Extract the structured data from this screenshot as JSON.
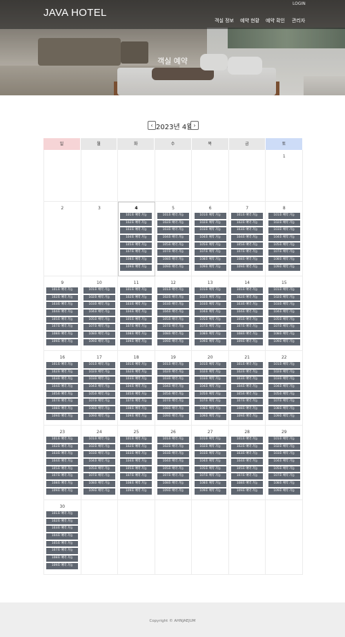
{
  "header": {
    "logo": "JAVA HOTEL",
    "login": "LOGIN",
    "nav": [
      "객실 정보",
      "예약 현황",
      "예약 확인",
      "관리자"
    ],
    "hero_title": "객실 예약"
  },
  "calendar": {
    "prev_icon": "chevron-left-icon",
    "next_icon": "chevron-right-icon",
    "prev_label": "‹",
    "next_label": "›",
    "month_title": "2023년 4월",
    "weekdays": [
      "일",
      "월",
      "화",
      "수",
      "목",
      "금",
      "토"
    ],
    "today": 4,
    "slot_label_suffix": "호 예약 가능",
    "rooms": [
      "101",
      "102",
      "103",
      "104",
      "105",
      "107",
      "108",
      "109"
    ],
    "weeks": [
      [
        "",
        "",
        "",
        "",
        "",
        "",
        "1"
      ],
      [
        "2",
        "3",
        "4",
        "5",
        "6",
        "7",
        "8"
      ],
      [
        "9",
        "10",
        "11",
        "12",
        "13",
        "14",
        "15"
      ],
      [
        "16",
        "17",
        "18",
        "19",
        "20",
        "21",
        "22"
      ],
      [
        "23",
        "24",
        "25",
        "26",
        "27",
        "28",
        "29"
      ],
      [
        "30",
        "",
        "",
        "",
        "",
        "",
        ""
      ]
    ],
    "bookable_from_day": 4,
    "colors": {
      "sunday_header": "#f6d4d6",
      "saturday_header": "#cddcf7",
      "weekday_header": "#e7e7e7",
      "slot_bg": "#5f6670"
    }
  },
  "footer": {
    "copyright": "Copyright © AHNJAEJUM"
  }
}
